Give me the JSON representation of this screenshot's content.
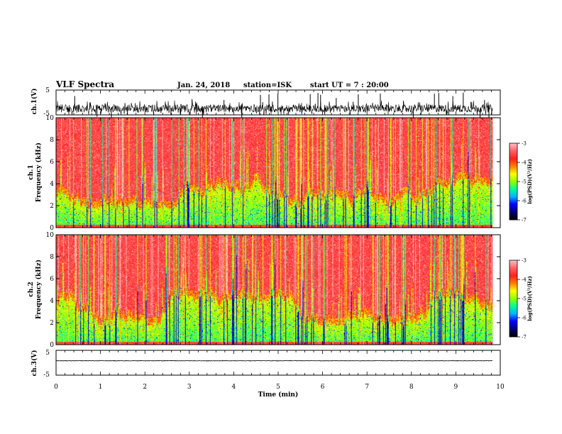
{
  "header": {
    "title": "VLF Spectra",
    "date": "Jan. 24, 2018",
    "station": "station=ISK",
    "start": "start UT = 7 : 20:00"
  },
  "colors": {
    "waveform": "#000000",
    "colormap": [
      "#000000",
      "#00007f",
      "#0000ff",
      "#00b4ff",
      "#00ff96",
      "#96ff00",
      "#ffff00",
      "#ff8000",
      "#ff2020",
      "#ff6060",
      "#ffc0c0"
    ]
  },
  "chart_data": [
    {
      "type": "line",
      "panel": "ch1-waveform",
      "ylabel": "ch.1(V)",
      "ylim": [
        -5,
        5
      ],
      "yticks": [
        "5",
        "-5"
      ],
      "baseline": -2.4,
      "spread": 1.6,
      "spikes": true
    },
    {
      "type": "heatmap",
      "panel": "ch1-spectrogram",
      "ylabel_line1": "ch.1",
      "ylabel_line2": "Frequency (kHz)",
      "ylim": [
        0,
        10
      ],
      "yticks": [
        "0",
        "2",
        "4",
        "6",
        "8",
        "10"
      ],
      "colorbar": {
        "ticks": [
          "-3",
          "-4",
          "-5",
          "-6",
          "-7"
        ],
        "range": [
          -7,
          -3
        ],
        "label": "log(PSD)(V²/Hz)"
      }
    },
    {
      "type": "heatmap",
      "panel": "ch2-spectrogram",
      "ylabel_line1": "ch.2",
      "ylabel_line2": "Frequency (kHz)",
      "ylim": [
        0,
        10
      ],
      "yticks": [
        "0",
        "2",
        "4",
        "6",
        "8",
        "10"
      ],
      "colorbar": {
        "ticks": [
          "-3",
          "-4",
          "-5",
          "-6",
          "-7"
        ],
        "range": [
          -7,
          -3
        ],
        "label": "log(PSD)(V²/Hz)"
      }
    },
    {
      "type": "line",
      "panel": "ch3-waveform",
      "ylabel": "ch.3(V)",
      "ylim": [
        -5,
        5
      ],
      "yticks": [
        "5",
        "-5"
      ],
      "baseline": 0.8,
      "spread": 0.08,
      "spikes": false
    }
  ],
  "xaxis": {
    "label": "Time (min)",
    "xlim": [
      0,
      10
    ],
    "data_end": 9.83,
    "ticks": [
      "0",
      "1",
      "2",
      "3",
      "4",
      "5",
      "6",
      "7",
      "8",
      "9",
      "10"
    ]
  }
}
